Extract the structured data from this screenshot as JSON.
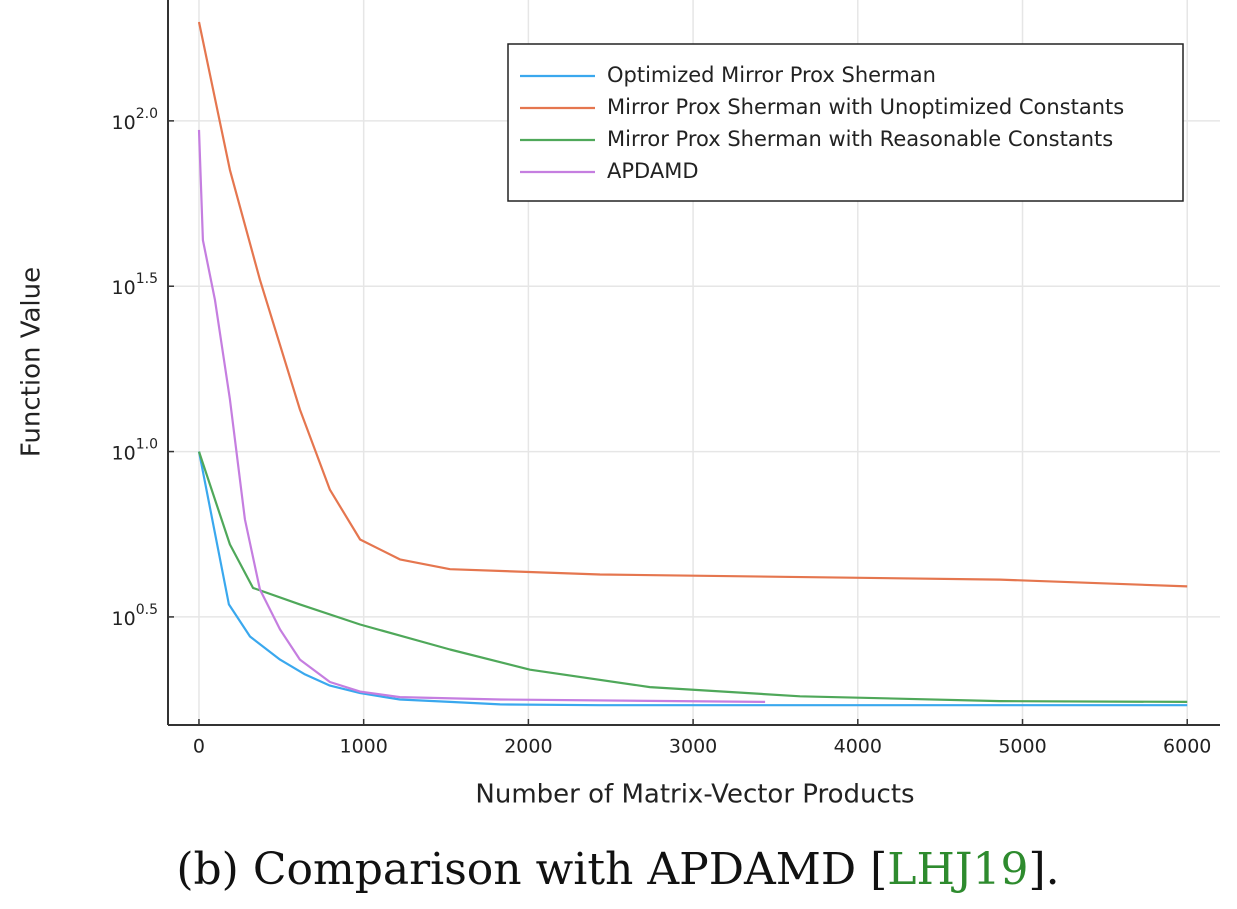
{
  "chart_data": {
    "type": "line",
    "xlabel": "Number of Matrix-Vector Products",
    "ylabel": "Function Value",
    "caption": {
      "prefix": "(b) Comparison with APDAMD [",
      "citation": "LHJ19",
      "suffix": "].",
      "citation_color": "#2e8b2e"
    },
    "xlim": [
      -188,
      6199
    ],
    "ylim": [
      1.49,
      232
    ],
    "ylog": true,
    "grid": true,
    "legend": "upper right",
    "xticks": [
      0,
      1000,
      2000,
      3000,
      4000,
      5000,
      6000
    ],
    "yticks": [
      {
        "value": 3.1623,
        "label": "10",
        "exponent": "0.5"
      },
      {
        "value": 10,
        "label": "10",
        "exponent": "1.0"
      },
      {
        "value": 31.623,
        "label": "10",
        "exponent": "1.5"
      },
      {
        "value": 100,
        "label": "10",
        "exponent": "2.0"
      }
    ],
    "series": [
      {
        "name": "Optimized Mirror Prox Sherman",
        "color": "#3aa8ee",
        "x": [
          0,
          182,
          310,
          492,
          644,
          795,
          978,
          1220,
          1524,
          1828,
          2435,
          6000
        ],
        "values": [
          10,
          3.45,
          2.76,
          2.35,
          2.12,
          1.96,
          1.86,
          1.78,
          1.75,
          1.72,
          1.71,
          1.71
        ]
      },
      {
        "name": "Mirror Prox Sherman with Unoptimized Constants",
        "color": "#e5764f",
        "x": [
          0,
          188,
          370,
          613,
          795,
          978,
          1220,
          1524,
          2435,
          4863,
          6000
        ],
        "values": [
          199,
          71.1,
          33.1,
          13.4,
          7.67,
          5.42,
          4.72,
          4.41,
          4.25,
          4.1,
          3.91
        ]
      },
      {
        "name": "Mirror Prox Sherman with Reasonable Constants",
        "color": "#4fa85a",
        "x": [
          0,
          188,
          328,
          613,
          978,
          1524,
          2010,
          2738,
          3649,
          4863,
          6000
        ],
        "values": [
          10,
          5.24,
          3.87,
          3.45,
          3.0,
          2.52,
          2.19,
          1.94,
          1.82,
          1.76,
          1.75
        ]
      },
      {
        "name": "APDAMD",
        "color": "#c57ee0",
        "x": [
          0,
          24,
          97,
          188,
          279,
          370,
          492,
          613,
          795,
          978,
          1220,
          1828,
          3437
        ],
        "values": [
          93.9,
          43.6,
          28.8,
          14.4,
          6.24,
          3.83,
          2.9,
          2.35,
          2.01,
          1.88,
          1.81,
          1.78,
          1.75
        ]
      }
    ]
  }
}
